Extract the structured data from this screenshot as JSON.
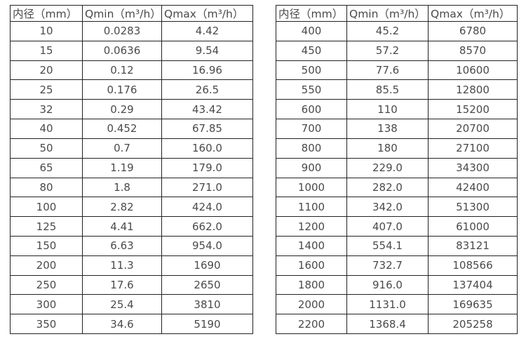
{
  "colors": {
    "background": "#ffffff",
    "border": "#222222",
    "text": "#4a4a4a"
  },
  "tables": [
    {
      "name": "flow-rate-table-dn10-350",
      "headers": [
        "内径（mm）",
        "Qmin（m³/h）",
        "Qmax（m³/h）"
      ],
      "rows": [
        [
          "10",
          "0.0283",
          "4.42"
        ],
        [
          "15",
          "0.0636",
          "9.54"
        ],
        [
          "20",
          "0.12",
          "16.96"
        ],
        [
          "25",
          "0.176",
          "26.5"
        ],
        [
          "32",
          "0.29",
          "43.42"
        ],
        [
          "40",
          "0.452",
          "67.85"
        ],
        [
          "50",
          "0.7",
          "160.0"
        ],
        [
          "65",
          "1.19",
          "179.0"
        ],
        [
          "80",
          "1.8",
          "271.0"
        ],
        [
          "100",
          "2.82",
          "424.0"
        ],
        [
          "125",
          "4.41",
          "662.0"
        ],
        [
          "150",
          "6.63",
          "954.0"
        ],
        [
          "200",
          "11.3",
          "1690"
        ],
        [
          "250",
          "17.6",
          "2650"
        ],
        [
          "300",
          "25.4",
          "3810"
        ],
        [
          "350",
          "34.6",
          "5190"
        ]
      ]
    },
    {
      "name": "flow-rate-table-dn400-2200",
      "headers": [
        "内径（mm）",
        "Qmin（m³/h）",
        "Qmax（m³/h）"
      ],
      "rows": [
        [
          "400",
          "45.2",
          "6780"
        ],
        [
          "450",
          "57.2",
          "8570"
        ],
        [
          "500",
          "77.6",
          "10600"
        ],
        [
          "550",
          "85.5",
          "12800"
        ],
        [
          "600",
          "110",
          "15200"
        ],
        [
          "700",
          "138",
          "20700"
        ],
        [
          "800",
          "180",
          "27100"
        ],
        [
          "900",
          "229.0",
          "34300"
        ],
        [
          "1000",
          "282.0",
          "42400"
        ],
        [
          "1100",
          "342.0",
          "51300"
        ],
        [
          "1200",
          "407.0",
          "61000"
        ],
        [
          "1400",
          "554.1",
          "83121"
        ],
        [
          "1600",
          "732.7",
          "108566"
        ],
        [
          "1800",
          "916.0",
          "137404"
        ],
        [
          "2000",
          "1131.0",
          "169635"
        ],
        [
          "2200",
          "1368.4",
          "205258"
        ]
      ]
    }
  ]
}
